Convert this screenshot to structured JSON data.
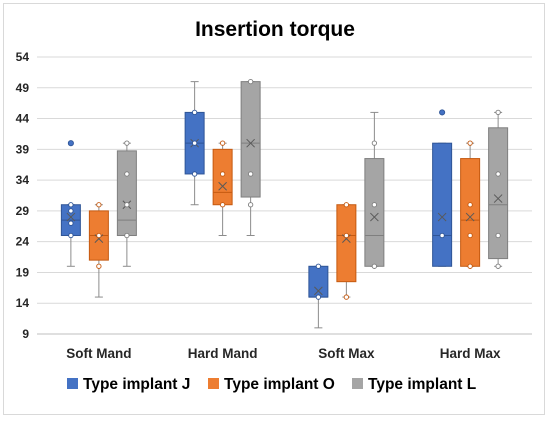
{
  "chart_data": {
    "type": "box",
    "title": "Insertion torque",
    "xlabel": "",
    "ylabel": "",
    "ylim": [
      9,
      54
    ],
    "yticks": [
      9,
      14,
      19,
      24,
      29,
      34,
      39,
      44,
      49,
      54
    ],
    "grid": true,
    "legend_position": "bottom",
    "categories": [
      "Soft Mand",
      "Hard Mand",
      "Soft Max",
      "Hard Max"
    ],
    "series": [
      {
        "name": "Type implant J",
        "color": "#4472C4",
        "edge": "#2F5597",
        "boxes": [
          {
            "whisker_low": 20,
            "q1": 25,
            "median": 27.5,
            "q3": 30,
            "whisker_high": 30,
            "mean": 28,
            "points": [
              25,
              27,
              29,
              30
            ],
            "outliers": [
              40
            ]
          },
          {
            "whisker_low": 30,
            "q1": 35,
            "median": 40,
            "q3": 45,
            "whisker_high": 50,
            "mean": 40,
            "points": [
              35,
              40,
              45
            ],
            "outliers": []
          },
          {
            "whisker_low": 10,
            "q1": 15,
            "median": 15,
            "q3": 20,
            "whisker_high": 20,
            "mean": 16,
            "points": [
              15,
              20
            ],
            "outliers": []
          },
          {
            "whisker_low": 20,
            "q1": 20,
            "median": 25,
            "q3": 40,
            "whisker_high": 40,
            "mean": 28,
            "points": [
              25
            ],
            "outliers": [
              45
            ]
          }
        ]
      },
      {
        "name": "Type implant O",
        "color": "#ED7D31",
        "edge": "#C55A11",
        "boxes": [
          {
            "whisker_low": 15,
            "q1": 21,
            "median": 25,
            "q3": 29,
            "whisker_high": 30,
            "mean": 24.5,
            "points": [
              20,
              25,
              30
            ],
            "outliers": []
          },
          {
            "whisker_low": 25,
            "q1": 30,
            "median": 32,
            "q3": 39,
            "whisker_high": 40,
            "mean": 33,
            "points": [
              30,
              35,
              40
            ],
            "outliers": []
          },
          {
            "whisker_low": 15,
            "q1": 17.5,
            "median": 25,
            "q3": 30,
            "whisker_high": 30,
            "mean": 24.5,
            "points": [
              15,
              25,
              30
            ],
            "outliers": []
          },
          {
            "whisker_low": 20,
            "q1": 20,
            "median": 27.5,
            "q3": 37.5,
            "whisker_high": 40,
            "mean": 28,
            "points": [
              20,
              25,
              30,
              40
            ],
            "outliers": []
          }
        ]
      },
      {
        "name": "Type implant L",
        "color": "#A5A5A5",
        "edge": "#7F7F7F",
        "boxes": [
          {
            "whisker_low": 20,
            "q1": 25,
            "median": 27.5,
            "q3": 38.75,
            "whisker_high": 40,
            "mean": 30,
            "points": [
              25,
              30,
              35,
              40
            ],
            "outliers": []
          },
          {
            "whisker_low": 25,
            "q1": 31.25,
            "median": 40,
            "q3": 50,
            "whisker_high": 50,
            "mean": 40,
            "points": [
              30,
              35,
              50
            ],
            "outliers": []
          },
          {
            "whisker_low": 20,
            "q1": 20,
            "median": 25,
            "q3": 37.5,
            "whisker_high": 45,
            "mean": 28,
            "points": [
              20,
              30,
              40
            ],
            "outliers": []
          },
          {
            "whisker_low": 20,
            "q1": 21.25,
            "median": 30,
            "q3": 42.5,
            "whisker_high": 45,
            "mean": 31,
            "points": [
              20,
              25,
              35,
              45
            ],
            "outliers": []
          }
        ]
      }
    ]
  }
}
